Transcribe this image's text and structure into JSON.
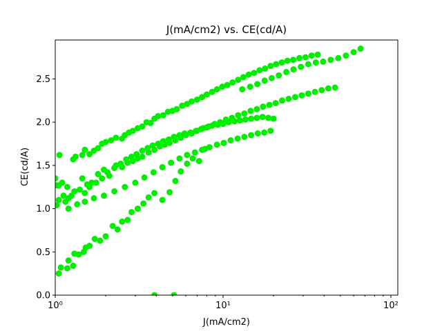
{
  "chart_data": {
    "type": "scatter",
    "title": "J(mA/cm2) vs. CE(cd/A)",
    "xlabel": "J(mA/cm2)",
    "ylabel": "CE(cd/A)",
    "xscale": "log",
    "xlim": [
      1,
      110
    ],
    "ylim": [
      0,
      2.95
    ],
    "x_ticks": [
      1,
      10,
      100
    ],
    "x_tick_labels": [
      "10⁰",
      "10¹",
      "10²"
    ],
    "y_ticks": [
      0.0,
      0.5,
      1.0,
      1.5,
      2.0,
      2.5
    ],
    "y_tick_labels": [
      "0.0",
      "0.5",
      "1.0",
      "1.5",
      "2.0",
      "2.5"
    ],
    "grid": false,
    "marker_color": "#00ee00",
    "series": [
      {
        "points": [
          [
            1.02,
            1.04
          ],
          [
            1.06,
            1.62
          ],
          [
            1.1,
            1.3
          ],
          [
            1.18,
            1.25
          ],
          [
            1.28,
            1.57
          ],
          [
            1.32,
            1.6
          ],
          [
            1.45,
            1.62
          ],
          [
            1.5,
            1.68
          ],
          [
            1.6,
            1.63
          ],
          [
            1.7,
            1.67
          ],
          [
            1.8,
            1.7
          ],
          [
            1.9,
            1.75
          ],
          [
            2.0,
            1.77
          ],
          [
            2.15,
            1.79
          ],
          [
            2.3,
            1.82
          ],
          [
            2.5,
            1.81
          ],
          [
            2.6,
            1.85
          ],
          [
            2.75,
            1.88
          ],
          [
            2.9,
            1.9
          ],
          [
            3.1,
            1.93
          ],
          [
            3.3,
            1.95
          ],
          [
            3.5,
            2.0
          ],
          [
            3.7,
            1.99
          ],
          [
            3.9,
            2.04
          ],
          [
            4.1,
            2.07
          ],
          [
            4.4,
            2.08
          ],
          [
            4.7,
            2.12
          ],
          [
            5.0,
            2.13
          ],
          [
            5.3,
            2.15
          ],
          [
            5.7,
            2.19
          ],
          [
            6.1,
            2.21
          ],
          [
            6.5,
            2.24
          ],
          [
            7.0,
            2.26
          ],
          [
            7.5,
            2.29
          ],
          [
            8.0,
            2.32
          ],
          [
            8.6,
            2.35
          ],
          [
            9.2,
            2.38
          ],
          [
            9.9,
            2.41
          ],
          [
            10.6,
            2.43
          ],
          [
            11.4,
            2.46
          ],
          [
            12.3,
            2.49
          ],
          [
            13.2,
            2.52
          ],
          [
            14.2,
            2.55
          ],
          [
            15.3,
            2.57
          ],
          [
            16.5,
            2.6
          ],
          [
            17.8,
            2.62
          ],
          [
            19.2,
            2.65
          ],
          [
            20.7,
            2.67
          ],
          [
            22.4,
            2.69
          ],
          [
            24.2,
            2.71
          ],
          [
            26.2,
            2.72
          ],
          [
            28.5,
            2.74
          ],
          [
            31.0,
            2.75
          ],
          [
            33.7,
            2.77
          ],
          [
            36.7,
            2.78
          ]
        ]
      },
      {
        "points": [
          [
            13.0,
            2.38
          ],
          [
            14.5,
            2.41
          ],
          [
            16.0,
            2.44
          ],
          [
            17.7,
            2.48
          ],
          [
            19.5,
            2.51
          ],
          [
            21.5,
            2.54
          ],
          [
            23.8,
            2.58
          ],
          [
            26.3,
            2.61
          ],
          [
            29.1,
            2.64
          ],
          [
            32.2,
            2.67
          ],
          [
            35.7,
            2.69
          ],
          [
            39.5,
            2.7
          ],
          [
            43.8,
            2.72
          ],
          [
            48.6,
            2.74
          ],
          [
            54.0,
            2.77
          ],
          [
            60.0,
            2.81
          ],
          [
            66.0,
            2.85
          ]
        ]
      },
      {
        "points": [
          [
            1.0,
            1.35
          ],
          [
            1.05,
            1.27
          ],
          [
            1.12,
            1.15
          ],
          [
            1.2,
            1.12
          ],
          [
            1.3,
            1.2
          ],
          [
            1.45,
            1.35
          ],
          [
            1.55,
            1.28
          ],
          [
            1.65,
            1.3
          ],
          [
            1.8,
            1.4
          ],
          [
            1.95,
            1.45
          ],
          [
            2.1,
            1.38
          ],
          [
            2.3,
            1.5
          ],
          [
            2.5,
            1.48
          ],
          [
            2.7,
            1.53
          ],
          [
            2.9,
            1.55
          ],
          [
            3.1,
            1.58
          ],
          [
            3.3,
            1.6
          ],
          [
            3.6,
            1.65
          ],
          [
            3.9,
            1.68
          ],
          [
            4.2,
            1.72
          ],
          [
            4.5,
            1.74
          ],
          [
            4.8,
            1.76
          ],
          [
            5.2,
            1.79
          ],
          [
            5.6,
            1.82
          ],
          [
            6.0,
            1.85
          ],
          [
            6.5,
            1.87
          ],
          [
            7.0,
            1.9
          ],
          [
            7.6,
            1.93
          ],
          [
            8.2,
            1.95
          ],
          [
            8.9,
            1.98
          ],
          [
            9.6,
            2.0
          ],
          [
            10.4,
            2.03
          ],
          [
            11.3,
            2.05
          ],
          [
            12.3,
            2.08
          ],
          [
            13.4,
            2.1
          ],
          [
            14.6,
            2.13
          ],
          [
            15.9,
            2.15
          ],
          [
            17.3,
            2.18
          ],
          [
            18.9,
            2.2
          ],
          [
            20.6,
            2.22
          ],
          [
            22.5,
            2.25
          ],
          [
            24.6,
            2.27
          ],
          [
            26.9,
            2.29
          ],
          [
            29.4,
            2.31
          ],
          [
            32.2,
            2.33
          ],
          [
            35.3,
            2.35
          ],
          [
            38.7,
            2.37
          ],
          [
            42.4,
            2.39
          ],
          [
            46.5,
            2.4
          ]
        ]
      },
      {
        "points": [
          [
            1.02,
            1.27
          ],
          [
            1.15,
            1.08
          ],
          [
            1.25,
            1.15
          ],
          [
            1.4,
            1.22
          ],
          [
            1.5,
            1.18
          ],
          [
            1.6,
            1.25
          ],
          [
            1.75,
            1.3
          ],
          [
            1.9,
            1.35
          ],
          [
            2.05,
            1.42
          ],
          [
            2.25,
            1.47
          ],
          [
            2.45,
            1.52
          ],
          [
            2.65,
            1.57
          ],
          [
            2.85,
            1.6
          ],
          [
            3.05,
            1.63
          ],
          [
            3.3,
            1.67
          ],
          [
            3.55,
            1.7
          ],
          [
            3.8,
            1.73
          ],
          [
            4.1,
            1.75
          ],
          [
            4.4,
            1.78
          ],
          [
            4.75,
            1.8
          ],
          [
            5.1,
            1.83
          ],
          [
            5.5,
            1.85
          ],
          [
            5.9,
            1.87
          ],
          [
            6.4,
            1.88
          ],
          [
            6.9,
            1.9
          ],
          [
            7.4,
            1.92
          ],
          [
            8.0,
            1.94
          ],
          [
            8.6,
            1.96
          ],
          [
            9.3,
            1.97
          ],
          [
            10.0,
            1.98
          ],
          [
            10.8,
            2.0
          ],
          [
            11.7,
            2.01
          ],
          [
            12.6,
            2.02
          ],
          [
            13.6,
            2.03
          ],
          [
            14.7,
            2.04
          ],
          [
            15.9,
            2.05
          ],
          [
            17.2,
            2.06
          ],
          [
            18.6,
            2.05
          ],
          [
            20.0,
            2.04
          ]
        ]
      },
      {
        "points": [
          [
            1.05,
            1.1
          ],
          [
            1.2,
            1.0
          ],
          [
            1.35,
            1.05
          ],
          [
            1.5,
            1.08
          ],
          [
            1.7,
            1.12
          ],
          [
            1.95,
            1.15
          ],
          [
            2.25,
            1.2
          ],
          [
            2.6,
            1.25
          ],
          [
            3.0,
            1.3
          ],
          [
            3.4,
            1.36
          ],
          [
            3.85,
            1.42
          ],
          [
            4.35,
            1.48
          ],
          [
            4.9,
            1.53
          ],
          [
            5.5,
            1.58
          ],
          [
            6.1,
            1.62
          ],
          [
            6.8,
            1.65
          ],
          [
            7.5,
            1.68
          ],
          [
            8.3,
            1.71
          ],
          [
            9.2,
            1.74
          ],
          [
            10.1,
            1.76
          ],
          [
            11.1,
            1.79
          ],
          [
            12.2,
            1.81
          ],
          [
            13.4,
            1.83
          ],
          [
            14.7,
            1.85
          ],
          [
            16.1,
            1.87
          ],
          [
            17.6,
            1.88
          ],
          [
            19.2,
            1.9
          ]
        ]
      },
      {
        "points": [
          [
            1.05,
            0.25
          ],
          [
            1.08,
            0.32
          ],
          [
            1.18,
            0.31
          ],
          [
            1.2,
            0.4
          ],
          [
            1.28,
            0.34
          ],
          [
            1.3,
            0.48
          ],
          [
            1.38,
            0.47
          ],
          [
            1.48,
            0.5
          ],
          [
            1.52,
            0.55
          ],
          [
            1.6,
            0.57
          ],
          [
            1.72,
            0.65
          ],
          [
            1.85,
            0.63
          ],
          [
            2.0,
            0.68
          ],
          [
            2.2,
            0.8
          ],
          [
            2.35,
            0.76
          ],
          [
            2.5,
            0.85
          ],
          [
            2.7,
            0.87
          ],
          [
            2.85,
            0.96
          ],
          [
            3.1,
            1.0
          ],
          [
            3.35,
            1.06
          ],
          [
            3.6,
            1.13
          ],
          [
            3.9,
            1.18
          ],
          [
            4.35,
            1.1
          ],
          [
            4.8,
            1.19
          ],
          [
            5.2,
            1.32
          ],
          [
            5.6,
            1.43
          ],
          [
            6.1,
            1.52
          ],
          [
            6.6,
            1.58
          ],
          [
            7.2,
            1.55
          ],
          [
            7.8,
            1.69
          ]
        ]
      },
      {
        "points": [
          [
            3.9,
            0.0
          ],
          [
            5.1,
            0.0
          ]
        ]
      }
    ]
  }
}
